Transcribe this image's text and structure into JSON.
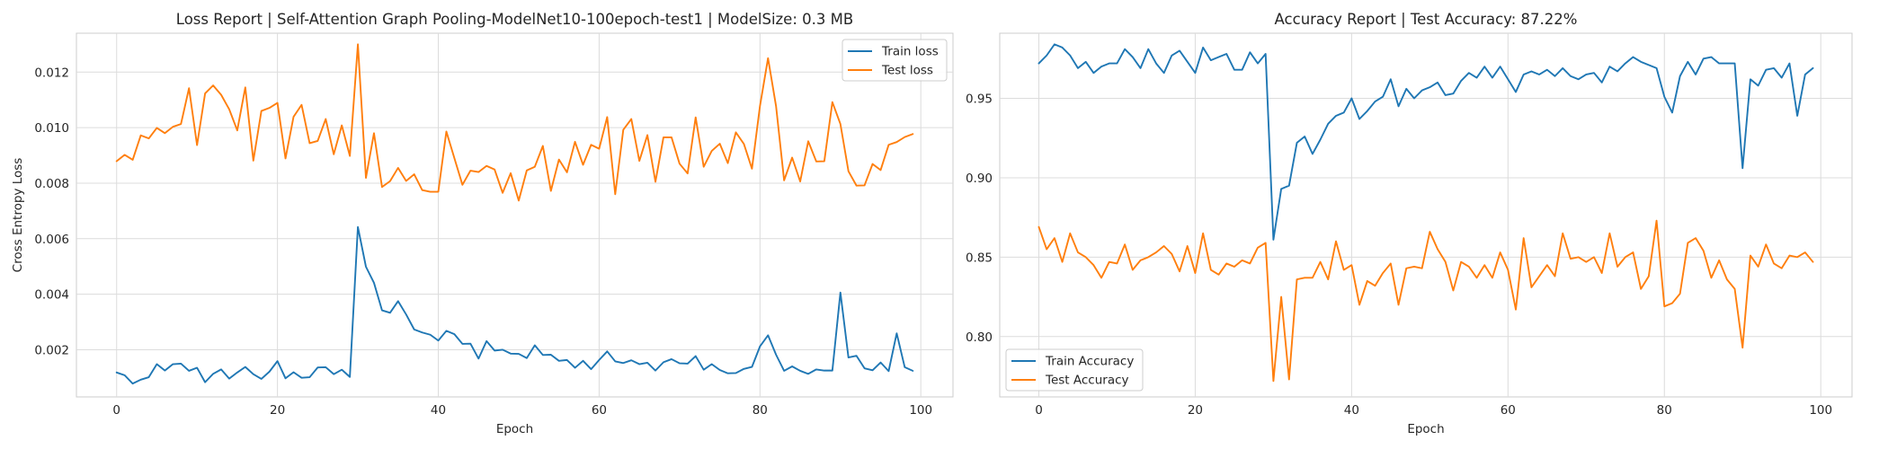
{
  "chart_data": [
    {
      "type": "line",
      "title": "Loss Report | Self-Attention Graph Pooling-ModelNet10-100epoch-test1 | ModelSize: 0.3 MB",
      "xlabel": "Epoch",
      "ylabel": "Cross Entropy Loss",
      "xlim": [
        -5,
        104
      ],
      "ylim": [
        0.0003,
        0.0134
      ],
      "xticks": [
        0,
        20,
        40,
        60,
        80,
        100
      ],
      "yticks": [
        0.002,
        0.004,
        0.006,
        0.008,
        0.01,
        0.012
      ],
      "ytick_labels": [
        "0.002",
        "0.004",
        "0.006",
        "0.008",
        "0.010",
        "0.012"
      ],
      "grid": true,
      "legend_position": "upper right",
      "series": [
        {
          "name": "Train loss",
          "color": "#1f77b4",
          "values": [
            0.00118,
            0.00108,
            0.00078,
            0.00092,
            0.00101,
            0.00148,
            0.00125,
            0.00148,
            0.0015,
            0.00124,
            0.00135,
            0.00083,
            0.00113,
            0.00129,
            0.00096,
            0.00118,
            0.00138,
            0.00112,
            0.00095,
            0.00121,
            0.00159,
            0.00097,
            0.00119,
            0.00099,
            0.00101,
            0.00136,
            0.00137,
            0.00112,
            0.00128,
            0.00102,
            0.00642,
            0.00499,
            0.00441,
            0.00342,
            0.00333,
            0.00375,
            0.00327,
            0.00273,
            0.00262,
            0.00254,
            0.00233,
            0.00268,
            0.00256,
            0.00221,
            0.00222,
            0.00168,
            0.00231,
            0.00197,
            0.002,
            0.00186,
            0.00185,
            0.0017,
            0.00216,
            0.00181,
            0.00182,
            0.0016,
            0.00163,
            0.00135,
            0.0016,
            0.0013,
            0.00163,
            0.00194,
            0.00158,
            0.00152,
            0.00162,
            0.00148,
            0.00153,
            0.00125,
            0.00155,
            0.00166,
            0.00151,
            0.0015,
            0.00177,
            0.00128,
            0.00148,
            0.00127,
            0.00115,
            0.00116,
            0.00131,
            0.00138,
            0.00212,
            0.00252,
            0.00182,
            0.00124,
            0.0014,
            0.00124,
            0.00113,
            0.00129,
            0.00125,
            0.00125,
            0.00406,
            0.00172,
            0.00178,
            0.00133,
            0.00126,
            0.00154,
            0.00123,
            0.00259,
            0.00137,
            0.00124
          ]
        },
        {
          "name": "Test loss",
          "color": "#ff7f0e",
          "values": [
            0.00879,
            0.00902,
            0.00884,
            0.00972,
            0.00961,
            0.00999,
            0.0098,
            0.01003,
            0.01013,
            0.01142,
            0.00937,
            0.01123,
            0.01152,
            0.01118,
            0.01066,
            0.0099,
            0.01145,
            0.00881,
            0.0106,
            0.01071,
            0.01089,
            0.00889,
            0.01039,
            0.01082,
            0.00944,
            0.00952,
            0.01031,
            0.00904,
            0.01008,
            0.00898,
            0.013,
            0.00819,
            0.0098,
            0.00786,
            0.00807,
            0.00855,
            0.00808,
            0.00832,
            0.00775,
            0.00769,
            0.00769,
            0.00986,
            0.0089,
            0.00794,
            0.00845,
            0.0084,
            0.00862,
            0.00849,
            0.00765,
            0.00836,
            0.00737,
            0.00846,
            0.00859,
            0.00934,
            0.00772,
            0.00885,
            0.00839,
            0.00949,
            0.00866,
            0.00938,
            0.00924,
            0.01038,
            0.0076,
            0.00992,
            0.01031,
            0.0088,
            0.00973,
            0.00805,
            0.00965,
            0.00965,
            0.0087,
            0.00835,
            0.01037,
            0.00859,
            0.00916,
            0.00942,
            0.00872,
            0.00983,
            0.00941,
            0.00852,
            0.01078,
            0.0125,
            0.01077,
            0.0081,
            0.00892,
            0.00806,
            0.00951,
            0.00878,
            0.00879,
            0.01092,
            0.01013,
            0.00843,
            0.00791,
            0.00792,
            0.00869,
            0.00847,
            0.00938,
            0.00948,
            0.00966,
            0.00977
          ]
        }
      ]
    },
    {
      "type": "line",
      "title": "Accuracy Report | Test Accuracy: 87.22%",
      "xlabel": "Epoch",
      "ylabel": "",
      "xlim": [
        -5,
        104
      ],
      "ylim": [
        0.762,
        0.991
      ],
      "xticks": [
        0,
        20,
        40,
        60,
        80,
        100
      ],
      "yticks": [
        0.8,
        0.85,
        0.9,
        0.95
      ],
      "ytick_labels": [
        "0.80",
        "0.85",
        "0.90",
        "0.95"
      ],
      "grid": true,
      "legend_position": "lower left",
      "series": [
        {
          "name": "Train Accuracy",
          "color": "#1f77b4",
          "values": [
            0.972,
            0.977,
            0.984,
            0.982,
            0.977,
            0.969,
            0.973,
            0.966,
            0.97,
            0.972,
            0.972,
            0.981,
            0.976,
            0.969,
            0.981,
            0.972,
            0.966,
            0.977,
            0.98,
            0.973,
            0.966,
            0.982,
            0.974,
            0.976,
            0.978,
            0.968,
            0.968,
            0.979,
            0.972,
            0.978,
            0.861,
            0.893,
            0.895,
            0.922,
            0.926,
            0.915,
            0.924,
            0.934,
            0.939,
            0.941,
            0.95,
            0.937,
            0.942,
            0.948,
            0.951,
            0.962,
            0.945,
            0.956,
            0.95,
            0.955,
            0.957,
            0.96,
            0.952,
            0.953,
            0.961,
            0.966,
            0.963,
            0.97,
            0.963,
            0.97,
            0.962,
            0.954,
            0.965,
            0.967,
            0.965,
            0.968,
            0.964,
            0.969,
            0.964,
            0.962,
            0.965,
            0.966,
            0.96,
            0.97,
            0.967,
            0.972,
            0.976,
            0.973,
            0.971,
            0.969,
            0.951,
            0.941,
            0.964,
            0.973,
            0.965,
            0.975,
            0.976,
            0.972,
            0.972,
            0.972,
            0.906,
            0.962,
            0.958,
            0.968,
            0.969,
            0.963,
            0.972,
            0.939,
            0.965,
            0.969
          ]
        },
        {
          "name": "Test Accuracy",
          "color": "#ff7f0e",
          "values": [
            0.869,
            0.855,
            0.862,
            0.847,
            0.865,
            0.853,
            0.85,
            0.845,
            0.837,
            0.847,
            0.846,
            0.858,
            0.842,
            0.848,
            0.85,
            0.853,
            0.857,
            0.852,
            0.841,
            0.857,
            0.84,
            0.865,
            0.842,
            0.839,
            0.846,
            0.844,
            0.848,
            0.846,
            0.856,
            0.859,
            0.772,
            0.825,
            0.773,
            0.836,
            0.837,
            0.837,
            0.847,
            0.836,
            0.86,
            0.842,
            0.845,
            0.82,
            0.835,
            0.832,
            0.84,
            0.846,
            0.82,
            0.843,
            0.844,
            0.843,
            0.866,
            0.855,
            0.847,
            0.829,
            0.847,
            0.844,
            0.837,
            0.845,
            0.837,
            0.853,
            0.842,
            0.817,
            0.862,
            0.831,
            0.838,
            0.845,
            0.838,
            0.865,
            0.849,
            0.85,
            0.847,
            0.85,
            0.84,
            0.865,
            0.844,
            0.85,
            0.853,
            0.83,
            0.838,
            0.873,
            0.819,
            0.821,
            0.827,
            0.859,
            0.862,
            0.854,
            0.837,
            0.848,
            0.836,
            0.83,
            0.793,
            0.851,
            0.844,
            0.858,
            0.846,
            0.843,
            0.851,
            0.85,
            0.853,
            0.847
          ]
        }
      ]
    }
  ]
}
